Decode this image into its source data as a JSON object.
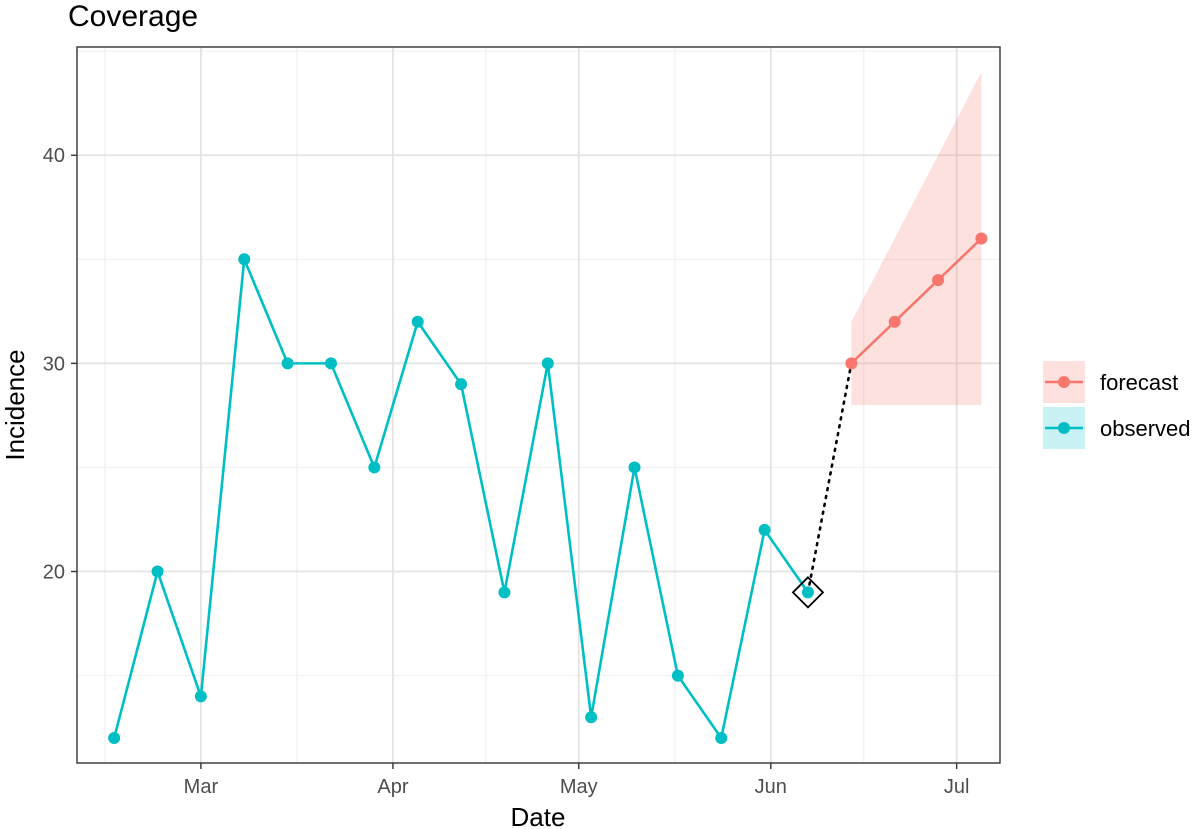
{
  "chart_data": {
    "type": "line",
    "title": "Coverage",
    "xlabel": "Date",
    "ylabel": "Incidence",
    "x_type": "date",
    "xlim": [
      "2023-02-09",
      "2023-07-08"
    ],
    "ylim": [
      10.8,
      45.2
    ],
    "x_ticks": [
      {
        "date": "2023-03-01",
        "label": "Mar"
      },
      {
        "date": "2023-04-01",
        "label": "Apr"
      },
      {
        "date": "2023-05-01",
        "label": "May"
      },
      {
        "date": "2023-06-01",
        "label": "Jun"
      },
      {
        "date": "2023-07-01",
        "label": "Jul"
      }
    ],
    "y_ticks": [
      20,
      30,
      40
    ],
    "grid": true,
    "legend_position": "right",
    "series": [
      {
        "name": "observed",
        "color": "#00BFC4",
        "x": [
          "2023-02-15",
          "2023-02-22",
          "2023-03-01",
          "2023-03-08",
          "2023-03-15",
          "2023-03-22",
          "2023-03-29",
          "2023-04-05",
          "2023-04-12",
          "2023-04-19",
          "2023-04-26",
          "2023-05-03",
          "2023-05-10",
          "2023-05-17",
          "2023-05-24",
          "2023-05-31",
          "2023-06-07"
        ],
        "y": [
          12,
          20,
          14,
          35,
          30,
          30,
          25,
          32,
          29,
          19,
          30,
          13,
          25,
          15,
          12,
          22,
          19
        ]
      },
      {
        "name": "forecast",
        "color": "#F8766D",
        "x": [
          "2023-06-14",
          "2023-06-21",
          "2023-06-28",
          "2023-07-05"
        ],
        "y": [
          30,
          32,
          34,
          36
        ],
        "lower": [
          28,
          28,
          28,
          28
        ],
        "upper": [
          32,
          36,
          40,
          44
        ]
      }
    ],
    "connector": {
      "from": [
        "2023-06-07",
        19
      ],
      "to": [
        "2023-06-14",
        30
      ],
      "style": "dotted",
      "color": "#000000"
    },
    "marker": {
      "x": "2023-06-07",
      "y": 19,
      "shape": "diamond"
    }
  }
}
